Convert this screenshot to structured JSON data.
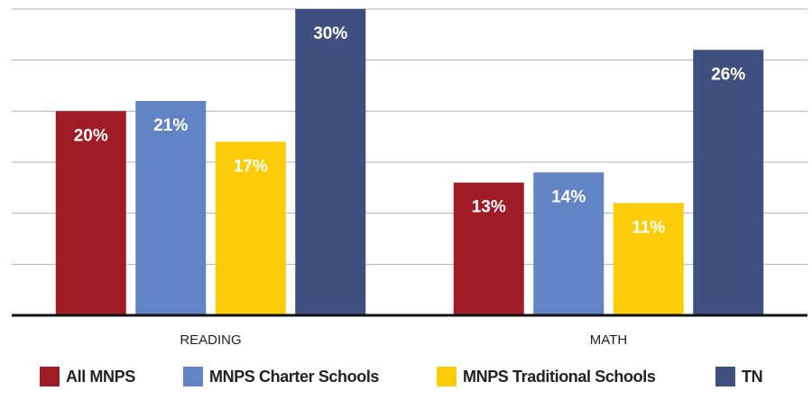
{
  "chart_data": {
    "type": "bar",
    "categories": [
      "READING",
      "MATH"
    ],
    "series": [
      {
        "name": "All MNPS",
        "color": "#a01c24",
        "values": [
          20,
          13
        ],
        "value_labels": [
          "20%",
          "13%"
        ]
      },
      {
        "name": "MNPS Charter Schools",
        "color": "#6384c4",
        "values": [
          21,
          14
        ],
        "value_labels": [
          "21%",
          "14%"
        ]
      },
      {
        "name": "MNPS Traditional Schools",
        "color": "#fccc0a",
        "values": [
          17,
          11
        ],
        "value_labels": [
          "17%",
          "11%"
        ]
      },
      {
        "name": "TN",
        "color": "#3f5080",
        "values": [
          30,
          26
        ],
        "value_labels": [
          "30%",
          "26%"
        ]
      }
    ],
    "ylim": [
      0,
      30
    ],
    "yticks": [
      5,
      10,
      15,
      20,
      25,
      30
    ],
    "grid": true,
    "legend": "bottom"
  }
}
